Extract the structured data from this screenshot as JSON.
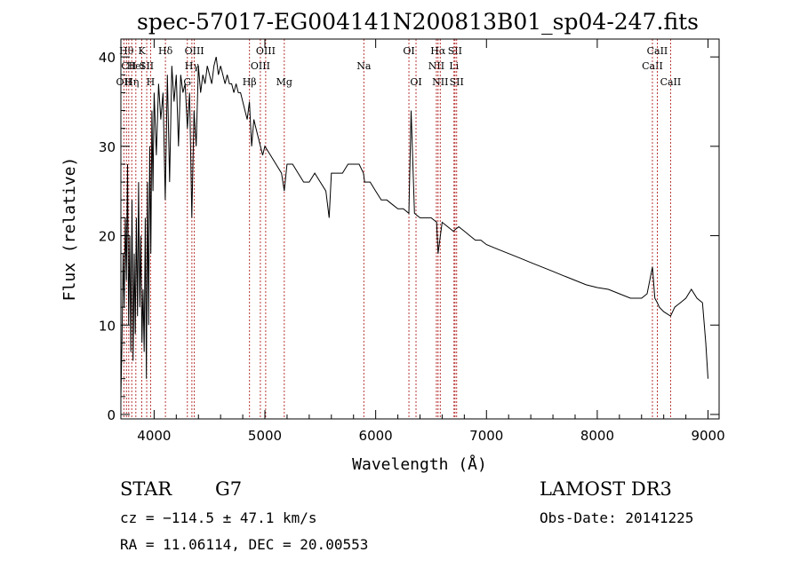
{
  "chart_data": {
    "type": "line",
    "title": "spec-57017-EG004141N200813B01_sp04-247.fits",
    "xlabel": "Wavelength (Å)",
    "ylabel": "Flux (relative)",
    "xlim": [
      3700,
      9100
    ],
    "ylim": [
      -0.5,
      42
    ],
    "xticks": [
      4000,
      5000,
      6000,
      7000,
      8000,
      9000
    ],
    "yticks": [
      0,
      10,
      20,
      30,
      40
    ],
    "grid": false,
    "series": [
      {
        "name": "flux",
        "x": [
          3700,
          3710,
          3720,
          3730,
          3740,
          3750,
          3760,
          3770,
          3780,
          3790,
          3800,
          3810,
          3820,
          3830,
          3840,
          3850,
          3860,
          3870,
          3880,
          3890,
          3900,
          3910,
          3920,
          3930,
          3940,
          3950,
          3960,
          3970,
          3980,
          3990,
          4000,
          4020,
          4040,
          4060,
          4080,
          4100,
          4120,
          4140,
          4160,
          4180,
          4200,
          4220,
          4240,
          4260,
          4280,
          4300,
          4320,
          4340,
          4360,
          4380,
          4400,
          4420,
          4440,
          4460,
          4480,
          4500,
          4520,
          4540,
          4560,
          4580,
          4600,
          4620,
          4640,
          4660,
          4680,
          4700,
          4720,
          4740,
          4760,
          4780,
          4800,
          4820,
          4840,
          4860,
          4880,
          4900,
          4920,
          4940,
          4960,
          4980,
          5000,
          5050,
          5100,
          5150,
          5175,
          5200,
          5250,
          5300,
          5350,
          5400,
          5450,
          5500,
          5550,
          5580,
          5600,
          5650,
          5700,
          5750,
          5800,
          5850,
          5890,
          5900,
          5950,
          6000,
          6050,
          6100,
          6150,
          6200,
          6250,
          6300,
          6320,
          6350,
          6400,
          6450,
          6500,
          6550,
          6563,
          6600,
          6650,
          6700,
          6750,
          6800,
          6850,
          6900,
          6950,
          7000,
          7100,
          7200,
          7300,
          7400,
          7500,
          7600,
          7700,
          7800,
          7900,
          8000,
          8100,
          8200,
          8300,
          8400,
          8450,
          8498,
          8520,
          8542,
          8560,
          8600,
          8662,
          8700,
          8750,
          8800,
          8850,
          8900,
          8950,
          8980,
          9000
        ],
        "y": [
          2,
          8,
          18,
          12,
          22,
          15,
          28,
          10,
          20,
          7,
          24,
          6,
          18,
          9,
          22,
          11,
          26,
          12,
          20,
          8,
          14,
          7,
          22,
          4,
          26,
          10,
          30,
          18,
          34,
          25,
          36,
          29,
          37,
          33,
          36,
          24,
          38,
          26,
          39,
          35,
          38,
          30,
          38,
          36,
          37,
          32,
          36,
          22,
          34,
          30,
          39,
          36,
          38,
          37,
          39,
          38,
          37,
          39,
          40,
          38,
          39,
          38,
          37,
          38,
          37,
          37,
          36,
          37,
          36,
          36,
          35,
          34,
          33,
          35,
          30,
          33,
          32,
          31,
          30,
          29,
          30,
          29,
          28,
          27,
          25,
          28,
          28,
          27,
          26,
          26,
          27,
          26,
          25,
          22,
          27,
          27,
          27,
          28,
          28,
          28,
          27,
          26,
          26,
          25,
          24,
          24,
          23.5,
          23,
          23,
          22.5,
          34,
          22.5,
          22,
          22,
          22,
          21.5,
          18,
          21.5,
          21,
          20.5,
          21,
          20.5,
          20,
          19.5,
          19.5,
          19,
          18.5,
          18,
          17.5,
          17,
          16.5,
          16,
          15.5,
          15,
          14.5,
          14.2,
          14,
          13.5,
          13,
          13,
          13.5,
          16.5,
          13,
          12.5,
          12,
          11.5,
          11,
          12,
          12.5,
          13,
          14,
          13,
          12.5,
          8,
          4
        ]
      }
    ],
    "lines": [
      {
        "wl": 3727,
        "label": "OII",
        "row": 3
      },
      {
        "wl": 3750,
        "label": "Hθ",
        "row": 1
      },
      {
        "wl": 3771,
        "label": "CII",
        "row": 2
      },
      {
        "wl": 3798,
        "label": "Hη",
        "row": 3
      },
      {
        "wl": 3835,
        "label": "HeI",
        "row": 2
      },
      {
        "wl": 3889,
        "label": "K",
        "row": 1
      },
      {
        "wl": 3933,
        "label": "SII",
        "row": 2
      },
      {
        "wl": 3968,
        "label": "H",
        "row": 3
      },
      {
        "wl": 4102,
        "label": "Hδ",
        "row": 1
      },
      {
        "wl": 4300,
        "label": "G",
        "row": 3
      },
      {
        "wl": 4341,
        "label": "Hγ",
        "row": 2
      },
      {
        "wl": 4363,
        "label": "OIII",
        "row": 1
      },
      {
        "wl": 4861,
        "label": "Hβ",
        "row": 3
      },
      {
        "wl": 4959,
        "label": "OIII",
        "row": 2
      },
      {
        "wl": 5007,
        "label": "OIII",
        "row": 1
      },
      {
        "wl": 5175,
        "label": "Mg",
        "row": 3
      },
      {
        "wl": 5893,
        "label": "Na",
        "row": 2
      },
      {
        "wl": 6300,
        "label": "OI",
        "row": 1
      },
      {
        "wl": 6364,
        "label": "OI",
        "row": 3
      },
      {
        "wl": 6548,
        "label": "NII",
        "row": 2
      },
      {
        "wl": 6563,
        "label": "Hα",
        "row": 1
      },
      {
        "wl": 6583,
        "label": "NII",
        "row": 3
      },
      {
        "wl": 6707,
        "label": "Li",
        "row": 2
      },
      {
        "wl": 6716,
        "label": "SII",
        "row": 1
      },
      {
        "wl": 6731,
        "label": "SII",
        "row": 3
      },
      {
        "wl": 8498,
        "label": "CaII",
        "row": 2
      },
      {
        "wl": 8542,
        "label": "CaII",
        "row": 1
      },
      {
        "wl": 8662,
        "label": "CaII",
        "row": 3
      }
    ]
  },
  "info": {
    "object_class": "STAR",
    "subclass": "G7",
    "survey": "LAMOST DR3",
    "cz": "cz = −114.5 ± 47.1 km/s",
    "obs_date": "Obs-Date: 20141225",
    "coords": "RA =  11.06114, DEC =  20.00553"
  }
}
